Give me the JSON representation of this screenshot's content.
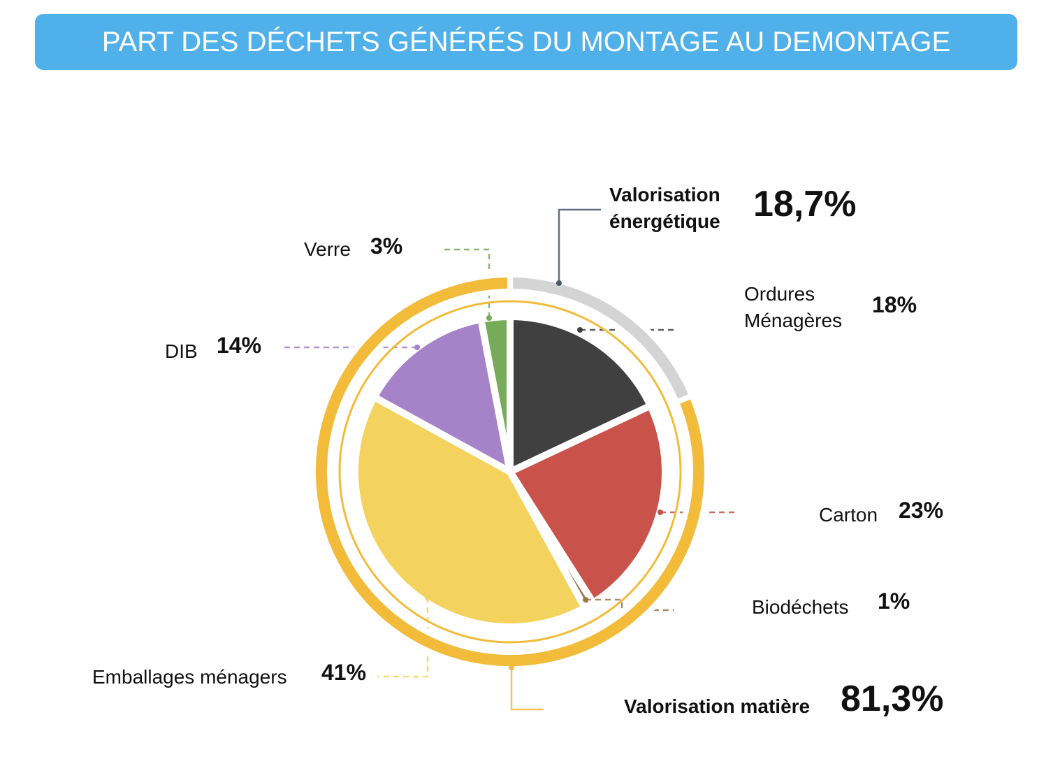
{
  "chart_data": [
    {
      "type": "pie",
      "title": "PART DES DÉCHETS GÉNÉRÉS DU MONTAGE AU DEMONTAGE",
      "categories": [
        "Ordures Ménagères",
        "Carton",
        "Biodéchets",
        "Emballages ménagers",
        "DIB",
        "Verre"
      ],
      "values": [
        18,
        23,
        1,
        41,
        14,
        3
      ],
      "value_labels": [
        "18%",
        "23%",
        "1%",
        "41%",
        "14%",
        "3%"
      ],
      "colors": [
        "#404040",
        "#c9524a",
        "#9c7653",
        "#f3d35e",
        "#a682c8",
        "#76ab5a"
      ]
    },
    {
      "type": "donut",
      "categories": [
        "Valorisation énergétique",
        "Valorisation matière"
      ],
      "values": [
        18.7,
        81.3
      ],
      "value_labels": [
        "18,7%",
        "81,3%"
      ],
      "colors": [
        "#d4d4d4",
        "#f2bc3a"
      ]
    }
  ]
}
